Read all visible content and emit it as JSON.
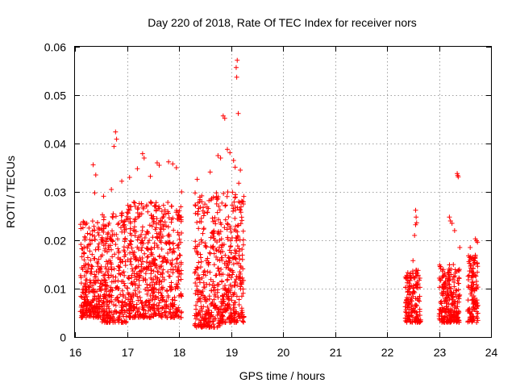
{
  "chart_data": {
    "type": "scatter",
    "title": "Day 220 of 2018, Rate Of TEC Index for receiver nors",
    "xlabel": "GPS time / hours",
    "ylabel": "ROTI / TECUs",
    "xlim": [
      16,
      24
    ],
    "ylim": [
      0,
      0.06
    ],
    "x_ticks": [
      16,
      17,
      18,
      19,
      20,
      21,
      22,
      23,
      24
    ],
    "x_tick_labels": [
      "16",
      "17",
      "18",
      "19",
      "20",
      "21",
      "22",
      "23",
      "24"
    ],
    "y_ticks": [
      0,
      0.01,
      0.02,
      0.03,
      0.04,
      0.05,
      0.06
    ],
    "y_tick_labels": [
      "0",
      "0.01",
      "0.02",
      "0.03",
      "0.04",
      "0.05",
      "0.06"
    ],
    "grid": true,
    "marker": "+",
    "color": "#ff0000",
    "series": [
      {
        "name": "ROTI",
        "points": [
          [
            16.35,
            0.0356
          ],
          [
            16.4,
            0.0335
          ],
          [
            16.38,
            0.0298
          ],
          [
            16.55,
            0.0291
          ],
          [
            16.7,
            0.0305
          ],
          [
            16.78,
            0.0424
          ],
          [
            16.8,
            0.0409
          ],
          [
            16.75,
            0.0394
          ],
          [
            16.9,
            0.0322
          ],
          [
            17.05,
            0.033
          ],
          [
            17.2,
            0.0348
          ],
          [
            17.3,
            0.0379
          ],
          [
            17.33,
            0.037
          ],
          [
            17.45,
            0.0332
          ],
          [
            17.58,
            0.036
          ],
          [
            17.62,
            0.0355
          ],
          [
            17.8,
            0.0362
          ],
          [
            17.88,
            0.0358
          ],
          [
            17.95,
            0.035
          ],
          [
            18.05,
            0.03
          ],
          [
            18.35,
            0.0326
          ],
          [
            18.6,
            0.0341
          ],
          [
            18.75,
            0.0375
          ],
          [
            18.8,
            0.037
          ],
          [
            18.85,
            0.0457
          ],
          [
            18.88,
            0.0452
          ],
          [
            18.93,
            0.0388
          ],
          [
            18.98,
            0.0381
          ],
          [
            19.05,
            0.0365
          ],
          [
            19.08,
            0.0351
          ],
          [
            19.12,
            0.0572
          ],
          [
            19.1,
            0.0557
          ],
          [
            19.11,
            0.0537
          ],
          [
            19.14,
            0.0462
          ],
          [
            19.18,
            0.0345
          ],
          [
            19.15,
            0.0318
          ],
          [
            19.22,
            0.028
          ],
          [
            19.24,
            0.0275
          ],
          [
            22.45,
            0.0131
          ],
          [
            22.5,
            0.0158
          ],
          [
            22.55,
            0.0262
          ],
          [
            22.56,
            0.0248
          ],
          [
            22.57,
            0.0236
          ],
          [
            22.55,
            0.0232
          ],
          [
            22.53,
            0.021
          ],
          [
            22.6,
            0.011
          ],
          [
            23.2,
            0.0248
          ],
          [
            23.22,
            0.024
          ],
          [
            23.25,
            0.0235
          ],
          [
            23.3,
            0.022
          ],
          [
            23.35,
            0.0338
          ],
          [
            23.36,
            0.0334
          ],
          [
            23.37,
            0.0331
          ],
          [
            23.4,
            0.0185
          ],
          [
            23.6,
            0.0185
          ],
          [
            23.7,
            0.0203
          ],
          [
            23.72,
            0.0199
          ],
          [
            23.74,
            0.0196
          ]
        ],
        "dense_clusters": [
          {
            "x_range": [
              16.1,
              16.5
            ],
            "y_range": [
              0.004,
              0.024
            ],
            "count": 260
          },
          {
            "x_range": [
              16.5,
              17.0
            ],
            "y_range": [
              0.003,
              0.026
            ],
            "count": 300
          },
          {
            "x_range": [
              17.0,
              17.5
            ],
            "y_range": [
              0.004,
              0.028
            ],
            "count": 300
          },
          {
            "x_range": [
              17.5,
              18.05
            ],
            "y_range": [
              0.004,
              0.028
            ],
            "count": 320
          },
          {
            "x_range": [
              18.3,
              18.8
            ],
            "y_range": [
              0.002,
              0.03
            ],
            "count": 300
          },
          {
            "x_range": [
              18.8,
              19.25
            ],
            "y_range": [
              0.003,
              0.03
            ],
            "count": 280
          },
          {
            "x_range": [
              22.35,
              22.65
            ],
            "y_range": [
              0.003,
              0.014
            ],
            "count": 160
          },
          {
            "x_range": [
              23.0,
              23.4
            ],
            "y_range": [
              0.003,
              0.015
            ],
            "count": 240
          },
          {
            "x_range": [
              23.55,
              23.75
            ],
            "y_range": [
              0.003,
              0.017
            ],
            "count": 130
          }
        ]
      }
    ]
  }
}
